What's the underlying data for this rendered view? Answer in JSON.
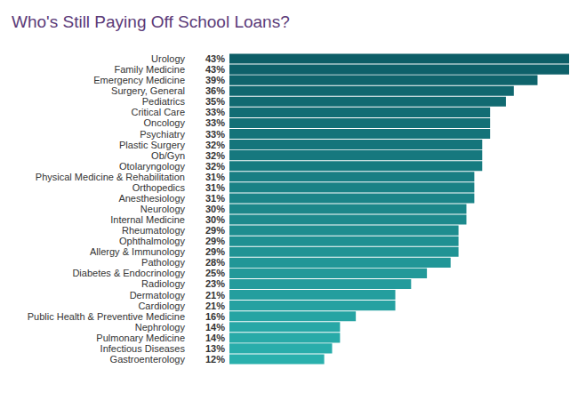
{
  "chart_data": {
    "type": "bar",
    "orientation": "horizontal",
    "title": "Who's Still Paying Off School Loans?",
    "categories": [
      "Urology",
      "Family Medicine",
      "Emergency Medicine",
      "Surgery, General",
      "Pediatrics",
      "Critical Care",
      "Oncology",
      "Psychiatry",
      "Plastic Surgery",
      "Ob/Gyn",
      "Otolaryngology",
      "Physical Medicine & Rehabilitation",
      "Orthopedics",
      "Anesthesiology",
      "Neurology",
      "Internal Medicine",
      "Rheumatology",
      "Ophthalmology",
      "Allergy & Immunology",
      "Pathology",
      "Diabetes & Endocrinology",
      "Radiology",
      "Dermatology",
      "Cardiology",
      "Public Health & Preventive Medicine",
      "Nephrology",
      "Pulmonary Medicine",
      "Infectious Diseases",
      "Gastroenterology"
    ],
    "values": [
      43,
      43,
      39,
      36,
      35,
      33,
      33,
      33,
      32,
      32,
      32,
      31,
      31,
      31,
      30,
      30,
      29,
      29,
      29,
      28,
      25,
      23,
      21,
      21,
      16,
      14,
      14,
      13,
      12
    ],
    "value_labels": [
      "43%",
      "43%",
      "39%",
      "36%",
      "35%",
      "33%",
      "33%",
      "33%",
      "32%",
      "32%",
      "32%",
      "31%",
      "31%",
      "31%",
      "30%",
      "30%",
      "29%",
      "29%",
      "29%",
      "28%",
      "25%",
      "23%",
      "21%",
      "21%",
      "16%",
      "14%",
      "14%",
      "13%",
      "12%"
    ],
    "data_labels": true,
    "colors": [
      "#0d5e67",
      "#0e616a",
      "#0f646c",
      "#10676f",
      "#116a71",
      "#126d74",
      "#137076",
      "#147379",
      "#15757b",
      "#16787e",
      "#177b80",
      "#187e83",
      "#198185",
      "#1b8488",
      "#1c878a",
      "#1d8a8d",
      "#1e8d8f",
      "#1f9092",
      "#209394",
      "#219697",
      "#229999",
      "#239b9c",
      "#249e9e",
      "#25a1a1",
      "#26a4a3",
      "#27a7a6",
      "#28aaa8",
      "#29adab",
      "#2ab0ad"
    ],
    "xlim": [
      0,
      43
    ],
    "grid": false,
    "tick_labels": "y"
  }
}
